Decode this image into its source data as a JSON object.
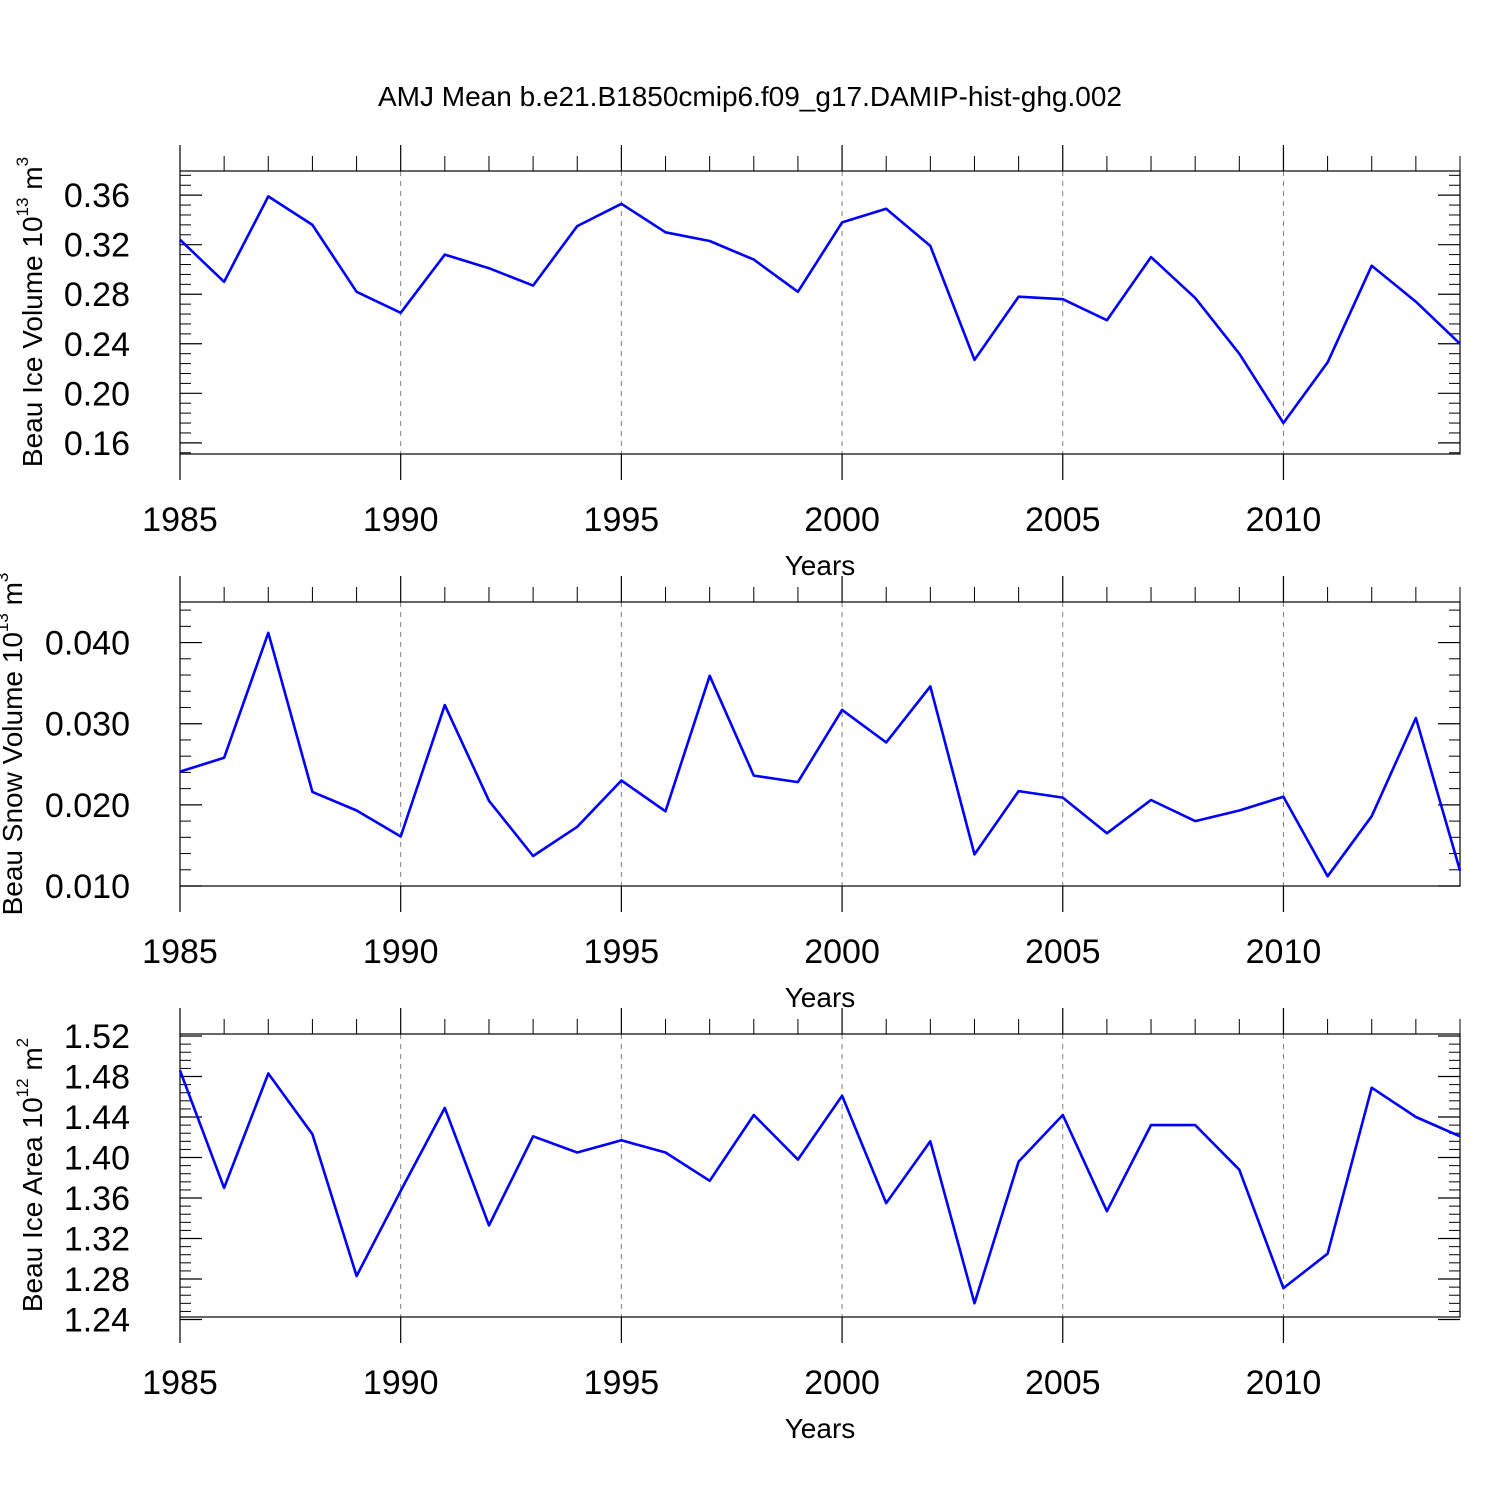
{
  "title": "AMJ Mean b.e21.B1850cmip6.f09_g17.DAMIP-hist-ghg.002",
  "colors": {
    "series": "#0000ff",
    "axis": "#000000",
    "grid": "#808080"
  },
  "chart_data": [
    {
      "type": "line",
      "xlabel": "Years",
      "ylabel": "Beau Ice Volume 10",
      "ylabel_exp": "13",
      "ylabel_unit": " m",
      "ylabel_unit_exp": "3",
      "xlim": [
        1985,
        2014
      ],
      "ylim": [
        0.151,
        0.3795
      ],
      "xticks": [
        1985,
        1990,
        1995,
        2000,
        2005,
        2010
      ],
      "xtick_labels": [
        "1985",
        "1990",
        "1995",
        "2000",
        "2005",
        "2010"
      ],
      "yticks": [
        0.16,
        0.2,
        0.24,
        0.28,
        0.32,
        0.36
      ],
      "ytick_labels": [
        "0.16",
        "0.20",
        "0.24",
        "0.28",
        "0.32",
        "0.36"
      ],
      "yminor_step": 0.008,
      "grid": "vertical dashed at major x ticks",
      "x": [
        1985,
        1986,
        1987,
        1988,
        1989,
        1990,
        1991,
        1992,
        1993,
        1994,
        1995,
        1996,
        1997,
        1998,
        1999,
        2000,
        2001,
        2002,
        2003,
        2004,
        2005,
        2006,
        2007,
        2008,
        2009,
        2010,
        2011,
        2012,
        2013,
        2014
      ],
      "values": [
        0.324,
        0.29,
        0.359,
        0.336,
        0.282,
        0.265,
        0.312,
        0.301,
        0.287,
        0.335,
        0.353,
        0.33,
        0.323,
        0.308,
        0.282,
        0.338,
        0.349,
        0.319,
        0.227,
        0.278,
        0.276,
        0.259,
        0.31,
        0.277,
        0.232,
        0.176,
        0.225,
        0.303,
        0.274,
        0.24
      ]
    },
    {
      "type": "line",
      "xlabel": "Years",
      "ylabel": "Beau Snow Volume 10",
      "ylabel_exp": "13",
      "ylabel_unit": " m",
      "ylabel_unit_exp": "3",
      "xlim": [
        1985,
        2014
      ],
      "ylim": [
        0.01,
        0.045
      ],
      "xticks": [
        1985,
        1990,
        1995,
        2000,
        2005,
        2010
      ],
      "xtick_labels": [
        "1985",
        "1990",
        "1995",
        "2000",
        "2005",
        "2010"
      ],
      "yticks": [
        0.01,
        0.02,
        0.03,
        0.04
      ],
      "ytick_labels": [
        "0.010",
        "0.020",
        "0.030",
        "0.040"
      ],
      "yminor_step": 0.002,
      "grid": "vertical dashed at major x ticks",
      "x": [
        1985,
        1986,
        1987,
        1988,
        1989,
        1990,
        1991,
        1992,
        1993,
        1994,
        1995,
        1996,
        1997,
        1998,
        1999,
        2000,
        2001,
        2002,
        2003,
        2004,
        2005,
        2006,
        2007,
        2008,
        2009,
        2010,
        2011,
        2012,
        2013,
        2014
      ],
      "values": [
        0.0241,
        0.0258,
        0.0412,
        0.0216,
        0.0193,
        0.0161,
        0.0323,
        0.0205,
        0.0137,
        0.0173,
        0.023,
        0.0192,
        0.0359,
        0.0236,
        0.0228,
        0.0317,
        0.0277,
        0.0346,
        0.0139,
        0.0217,
        0.0209,
        0.0165,
        0.0206,
        0.018,
        0.0193,
        0.021,
        0.0112,
        0.0186,
        0.0307,
        0.0119
      ]
    },
    {
      "type": "line",
      "xlabel": "Years",
      "ylabel": "Beau Ice Area 10",
      "ylabel_exp": "12",
      "ylabel_unit": " m",
      "ylabel_unit_exp": "2",
      "xlim": [
        1985,
        2014
      ],
      "ylim": [
        1.2425,
        1.522
      ],
      "xticks": [
        1985,
        1990,
        1995,
        2000,
        2005,
        2010
      ],
      "xtick_labels": [
        "1985",
        "1990",
        "1995",
        "2000",
        "2005",
        "2010"
      ],
      "yticks": [
        1.24,
        1.28,
        1.32,
        1.36,
        1.4,
        1.44,
        1.48,
        1.52
      ],
      "ytick_labels": [
        "1.24",
        "1.28",
        "1.32",
        "1.36",
        "1.40",
        "1.44",
        "1.48",
        "1.52"
      ],
      "yminor_step": 0.008,
      "grid": "vertical dashed at major x ticks",
      "x": [
        1985,
        1986,
        1987,
        1988,
        1989,
        1990,
        1991,
        1992,
        1993,
        1994,
        1995,
        1996,
        1997,
        1998,
        1999,
        2000,
        2001,
        2002,
        2003,
        2004,
        2005,
        2006,
        2007,
        2008,
        2009,
        2010,
        2011,
        2012,
        2013,
        2014
      ],
      "values": [
        1.486,
        1.37,
        1.483,
        1.423,
        1.283,
        1.367,
        1.449,
        1.333,
        1.421,
        1.405,
        1.417,
        1.405,
        1.377,
        1.442,
        1.398,
        1.461,
        1.355,
        1.416,
        1.256,
        1.396,
        1.442,
        1.347,
        1.432,
        1.432,
        1.388,
        1.271,
        1.305,
        1.469,
        1.44,
        1.421
      ]
    }
  ]
}
